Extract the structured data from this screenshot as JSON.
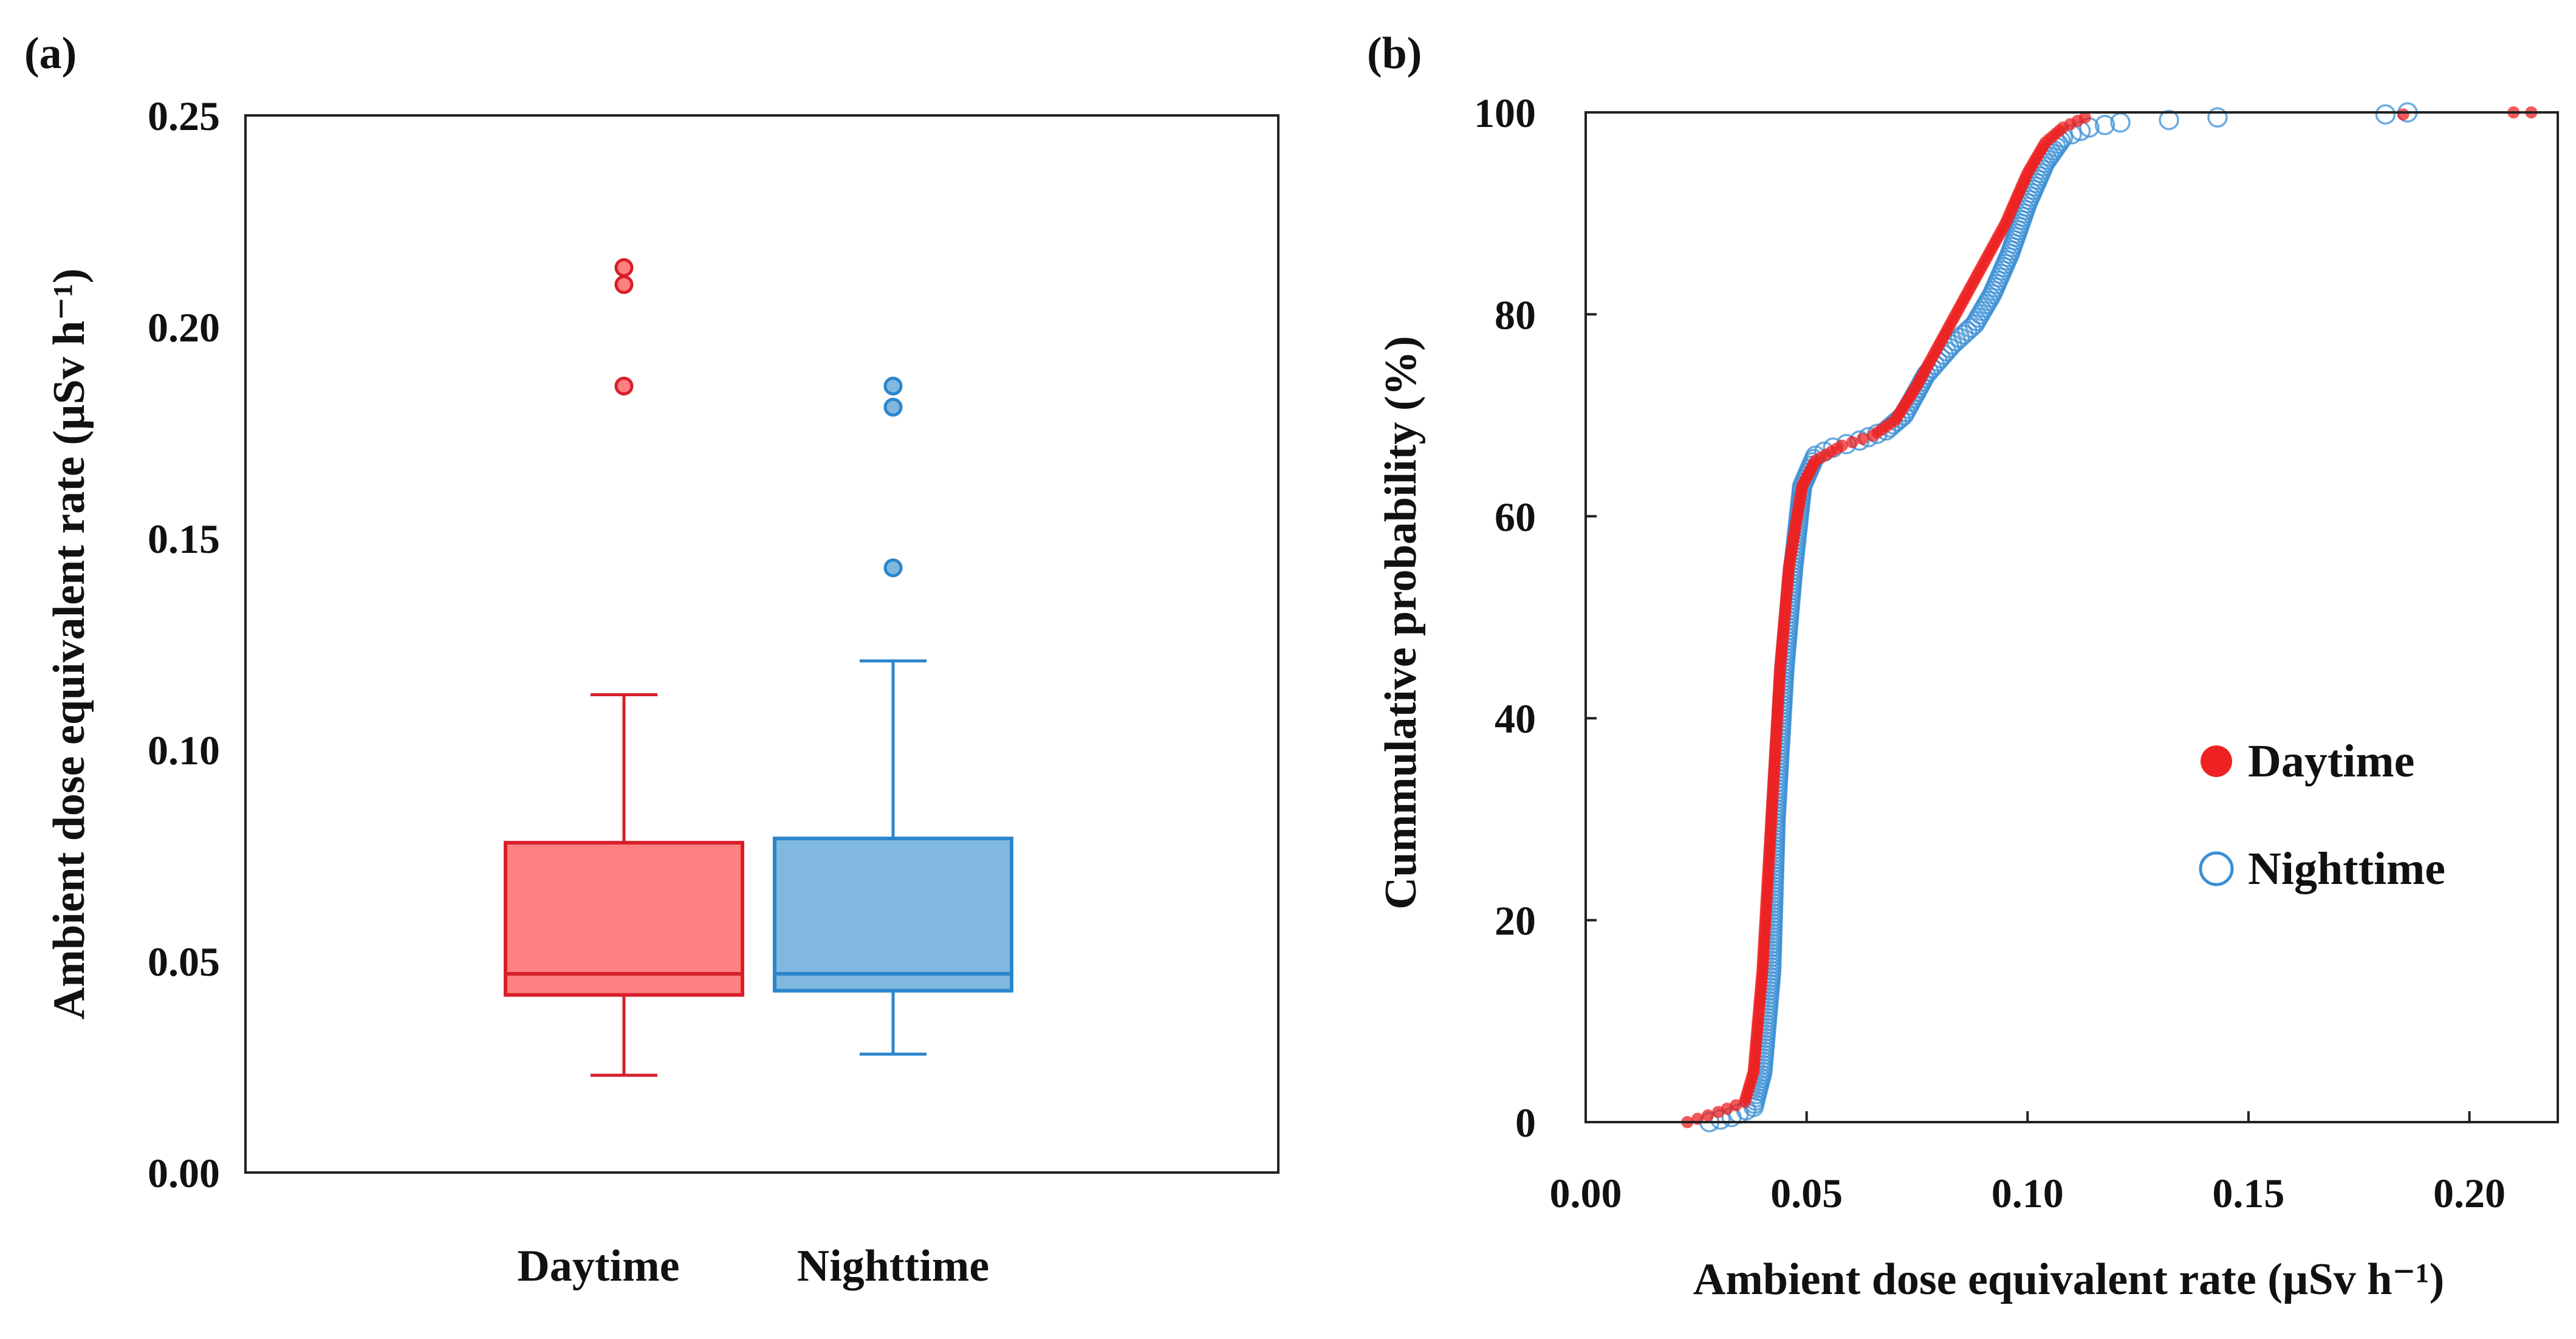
{
  "chart_data": [
    {
      "panel": "(a)",
      "type": "box",
      "title": "",
      "xlabel": "",
      "ylabel": "Ambient dose equivalent rate (µSv h⁻¹)",
      "ylim": [
        0,
        0.25
      ],
      "yticks": [
        "0.00",
        "0.05",
        "0.10",
        "0.15",
        "0.20",
        "0.25"
      ],
      "categories": [
        "Daytime",
        "Nighttime"
      ],
      "series": [
        {
          "name": "Daytime",
          "color": "#d71f2a",
          "fill": "#ff8080",
          "whisker_low": 0.023,
          "q1": 0.042,
          "median": 0.047,
          "q3": 0.078,
          "whisker_high": 0.113,
          "outliers": [
            0.186,
            0.21,
            0.214
          ]
        },
        {
          "name": "Nighttime",
          "color": "#2b86cc",
          "fill": "#80b8e0",
          "whisker_low": 0.028,
          "q1": 0.043,
          "median": 0.047,
          "q3": 0.079,
          "whisker_high": 0.121,
          "outliers": [
            0.143,
            0.181,
            0.186
          ]
        }
      ]
    },
    {
      "panel": "(b)",
      "type": "scatter",
      "title": "",
      "xlabel": "Ambient dose equivalent rate (µSv h⁻¹)",
      "ylabel": "Cummulative probability (%)",
      "xlim": [
        0,
        0.22
      ],
      "ylim": [
        0,
        100
      ],
      "xticks": [
        "0.00",
        "0.05",
        "0.10",
        "0.15",
        "0.20"
      ],
      "yticks": [
        "0",
        "20",
        "40",
        "60",
        "80",
        "100"
      ],
      "legend_position": "right-middle",
      "series": [
        {
          "name": "Daytime",
          "marker": "filled-circle",
          "color": "#ee2222",
          "cdf": [
            [
              0.023,
              0
            ],
            [
              0.03,
              1
            ],
            [
              0.036,
              2
            ],
            [
              0.038,
              5
            ],
            [
              0.04,
              15
            ],
            [
              0.042,
              30
            ],
            [
              0.044,
              45
            ],
            [
              0.046,
              55
            ],
            [
              0.049,
              63
            ],
            [
              0.052,
              65.5
            ],
            [
              0.058,
              67
            ],
            [
              0.065,
              68
            ],
            [
              0.07,
              69.5
            ],
            [
              0.075,
              73
            ],
            [
              0.08,
              77
            ],
            [
              0.085,
              81
            ],
            [
              0.09,
              85
            ],
            [
              0.095,
              89
            ],
            [
              0.1,
              94
            ],
            [
              0.104,
              97
            ],
            [
              0.108,
              98.5
            ],
            [
              0.113,
              99.5
            ],
            [
              0.185,
              99.8
            ],
            [
              0.21,
              100
            ],
            [
              0.214,
              100
            ]
          ]
        },
        {
          "name": "Nighttime",
          "marker": "open-circle",
          "color": "#3b8fd4",
          "cdf": [
            [
              0.028,
              0
            ],
            [
              0.033,
              0.5
            ],
            [
              0.038,
              1.5
            ],
            [
              0.04,
              5
            ],
            [
              0.042,
              15
            ],
            [
              0.043,
              30
            ],
            [
              0.045,
              45
            ],
            [
              0.047,
              55
            ],
            [
              0.049,
              63
            ],
            [
              0.052,
              66
            ],
            [
              0.056,
              66.8
            ],
            [
              0.062,
              67.5
            ],
            [
              0.068,
              68.5
            ],
            [
              0.072,
              70
            ],
            [
              0.077,
              74
            ],
            [
              0.083,
              77
            ],
            [
              0.088,
              79
            ],
            [
              0.092,
              82
            ],
            [
              0.096,
              86
            ],
            [
              0.1,
              91
            ],
            [
              0.104,
              95
            ],
            [
              0.108,
              97.5
            ],
            [
              0.114,
              98.5
            ],
            [
              0.121,
              99
            ],
            [
              0.143,
              99.5
            ],
            [
              0.181,
              99.8
            ],
            [
              0.186,
              100
            ]
          ]
        }
      ]
    }
  ]
}
